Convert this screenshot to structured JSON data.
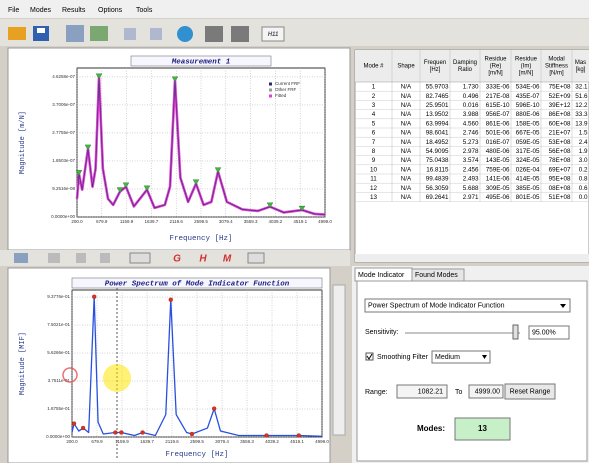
{
  "menu": [
    "File",
    "Modes",
    "Results",
    "Options",
    "Tools"
  ],
  "toolbar": {
    "h11": "H11",
    "plot_buttons": [
      "G",
      "H",
      "M"
    ]
  },
  "chart_data": [
    {
      "type": "line",
      "title": "Measurement 1",
      "x_label": "Frequency [Hz]",
      "y_label": "Magnitude [m/N]",
      "xlim": [
        200,
        4999
      ],
      "xticks": [
        {
          "value": 200,
          "label": "200.0"
        },
        679.9,
        1159.9,
        1639.7,
        2119.6,
        2599.5,
        3079.4,
        3559.3,
        4039.2,
        4519.1,
        {
          "value": 4999,
          "label": "4999.0"
        }
      ],
      "ylim": [
        0,
        4.92e-07
      ],
      "yticks": [
        {
          "value": 0,
          "label": "0.0000e+00"
        },
        {
          "value": 9.2516e-08,
          "label": "9.2516e-08"
        },
        {
          "value": 1.8503e-07,
          "label": "1.8503e-07"
        },
        {
          "value": 2.7755e-07,
          "label": "2.7755e-07"
        },
        {
          "value": 3.7006e-07,
          "label": "3.7006e-07"
        },
        {
          "value": 4.6258e-07,
          "label": "4.6258e-07"
        }
      ],
      "grid": true,
      "legend": "upper right",
      "x": [
        200,
        239,
        300,
        413,
        500,
        560,
        626,
        700,
        800,
        900,
        1032,
        1148,
        1300,
        1555,
        1700,
        1900,
        2000,
        2096,
        2200,
        2350,
        2503,
        2650,
        2800,
        2929,
        3100,
        3400,
        3700,
        3935,
        4200,
        4554,
        4800,
        4999
      ],
      "series": [
        {
          "name": "Current FRF",
          "color": "#2a2a70",
          "values": [
            6e-08,
            1.41e-07,
            9e-08,
            2.25e-07,
            1e-07,
            1.6e-07,
            4.6e-07,
            1.6e-07,
            6e-08,
            4e-08,
            8.4e-08,
            1e-07,
            3.5e-08,
            9e-08,
            3e-08,
            4e-08,
            1e-07,
            4.5e-07,
            1.3e-07,
            5e-08,
            1.1e-07,
            4e-08,
            5e-08,
            1.5e-07,
            5e-08,
            2.5e-08,
            2e-08,
            3.4e-08,
            1.5e-08,
            2.3e-08,
            1e-08,
            8e-09
          ]
        },
        {
          "name": "Other FRF",
          "color": "#9a9a9a"
        },
        {
          "name": "Fitted",
          "color": "#e040d0",
          "values": [
            6e-08,
            1.41e-07,
            9e-08,
            2.25e-07,
            1e-07,
            1.6e-07,
            4.6e-07,
            1.6e-07,
            6e-08,
            4e-08,
            8.4e-08,
            1e-07,
            3.5e-08,
            9e-08,
            3e-08,
            4e-08,
            1e-07,
            4.5e-07,
            1.3e-07,
            5e-08,
            1.1e-07,
            4e-08,
            5e-08,
            1.5e-07,
            5e-08,
            2.5e-08,
            2e-08,
            3.4e-08,
            1.5e-08,
            2.3e-08,
            1e-08,
            8e-09
          ]
        }
      ],
      "peaks": {
        "marker": "triangle",
        "color": "#3cb83c",
        "x": [
          239,
          413,
          626,
          1032,
          1148,
          1555,
          2096,
          2503,
          2929,
          3935,
          4554
        ],
        "values": [
          1.41e-07,
          2.25e-07,
          4.6e-07,
          8.4e-08,
          1e-07,
          9e-08,
          4.5e-07,
          1.1e-07,
          1.5e-07,
          3.4e-08,
          2.3e-08
        ]
      }
    },
    {
      "type": "line",
      "title": "Power Spectrum of Mode Indicator Function",
      "x_label": "Frequency [Hz]",
      "y_label": "Magnitude [MIF]",
      "xlim": [
        200,
        4999
      ],
      "xticks": [
        {
          "value": 200,
          "label": "200.0"
        },
        679.9,
        1159.9,
        1639.7,
        2119.6,
        2599.5,
        3079.4,
        3559.3,
        4039.2,
        4519.1,
        {
          "value": 4999,
          "label": "4999.0"
        }
      ],
      "ylim": [
        0,
        0.985
      ],
      "yticks": [
        {
          "value": 0,
          "label": "0.0000e+00"
        },
        {
          "value": 0.18755,
          "label": "1.8755e-01"
        },
        {
          "value": 0.37511,
          "label": "3.7511e-01"
        },
        {
          "value": 0.56266,
          "label": "5.6266e-01"
        },
        {
          "value": 0.75021,
          "label": "7.5021e-01"
        },
        {
          "value": 0.93776,
          "label": "9.3776e-01"
        }
      ],
      "grid": true,
      "x": [
        200,
        239,
        330,
        413,
        520,
        626,
        700,
        800,
        1032,
        1148,
        1400,
        1555,
        1800,
        2000,
        2096,
        2200,
        2400,
        2503,
        2800,
        2929,
        3050,
        3400,
        3935,
        4554,
        4999
      ],
      "series": [
        {
          "name": "MIF",
          "color": "#2850e0",
          "values": [
            0.03,
            0.09,
            0.04,
            0.06,
            0.03,
            0.94,
            0.1,
            0.02,
            0.03,
            0.03,
            0.01,
            0.03,
            0.01,
            0.15,
            0.92,
            0.15,
            0.03,
            0.02,
            0.06,
            0.19,
            0.04,
            0.01,
            0.01,
            0.01,
            0.005
          ]
        }
      ],
      "peaks": {
        "marker": "circle",
        "color": "#e03020",
        "x": [
          239,
          413,
          626,
          1032,
          1148,
          1555,
          2096,
          2503,
          2929,
          3935,
          4554
        ],
        "values": [
          0.09,
          0.06,
          0.94,
          0.03,
          0.03,
          0.03,
          0.92,
          0.02,
          0.19,
          0.01,
          0.01
        ]
      }
    }
  ],
  "table": {
    "headers": [
      [
        "Mode #"
      ],
      [
        "Shape"
      ],
      [
        "Frequen",
        "[Hz]"
      ],
      [
        "Damping",
        "Ratio"
      ],
      [
        "Residue",
        "(Re)",
        "[m/N]"
      ],
      [
        "Residue",
        "(Im)",
        "[m/N]"
      ],
      [
        "Modal",
        "Stiffness",
        "[N/m]"
      ],
      [
        "Mas",
        "[kg]"
      ]
    ],
    "rows": [
      [
        "1",
        "N/A",
        "55.9703",
        "1.730",
        "333E-06",
        "534E-06",
        "75E+08",
        "32.1"
      ],
      [
        "2",
        "N/A",
        "82.7465",
        "0.496",
        "217E-08",
        "435E-07",
        "52E+09",
        "51.6"
      ],
      [
        "3",
        "N/A",
        "25.9501",
        "0.016",
        "615E-10",
        "596E-10",
        "39E+12",
        "12.2"
      ],
      [
        "4",
        "N/A",
        "13.9502",
        "3.988",
        "956E-07",
        "880E-06",
        "86E+08",
        "33.3"
      ],
      [
        "5",
        "N/A",
        "63.9994",
        "4.560",
        "861E-06",
        "158E-05",
        "60E+08",
        "13.9"
      ],
      [
        "6",
        "N/A",
        "98.6041",
        "2.746",
        "501E-06",
        "667E-05",
        "21E+07",
        "1.5"
      ],
      [
        "7",
        "N/A",
        "18.4952",
        "5.273",
        "016E-07",
        "059E-05",
        "53E+08",
        "2.4"
      ],
      [
        "8",
        "N/A",
        "54.9095",
        "2.978",
        "480E-06",
        "317E-05",
        "56E+08",
        "1.9"
      ],
      [
        "9",
        "N/A",
        "75.0438",
        "3.574",
        "143E-05",
        "324E-05",
        "78E+08",
        "3.0"
      ],
      [
        "10",
        "N/A",
        "16.8115",
        "2.456",
        "759E-06",
        "026E-04",
        "69E+07",
        "0.2"
      ],
      [
        "11",
        "N/A",
        "99.4839",
        "2.493",
        "141E-06",
        "414E-05",
        "95E+08",
        "0.8"
      ],
      [
        "12",
        "N/A",
        "56.3059",
        "5.688",
        "309E-05",
        "385E-05",
        "08E+08",
        "0.6"
      ],
      [
        "13",
        "N/A",
        "69.2641",
        "2.971",
        "495E-06",
        "801E-05",
        "51E+08",
        "0.0"
      ]
    ]
  },
  "mode_indicator": {
    "tabs": [
      "Mode Indicator",
      "Found Modes"
    ],
    "function": "Power Spectrum of Mode Indicator Function",
    "sensitivity_label": "Sensitivity:",
    "sensitivity": "95.00%",
    "smoothing_label": "Smoothing Filter",
    "smoothing": "Medium",
    "range_label": "Range:",
    "range_from": "1082.21",
    "range_to_label": "To",
    "range_to": "4999.00",
    "reset": "Reset Range",
    "modes_label": "Modes:",
    "modes": "13"
  }
}
